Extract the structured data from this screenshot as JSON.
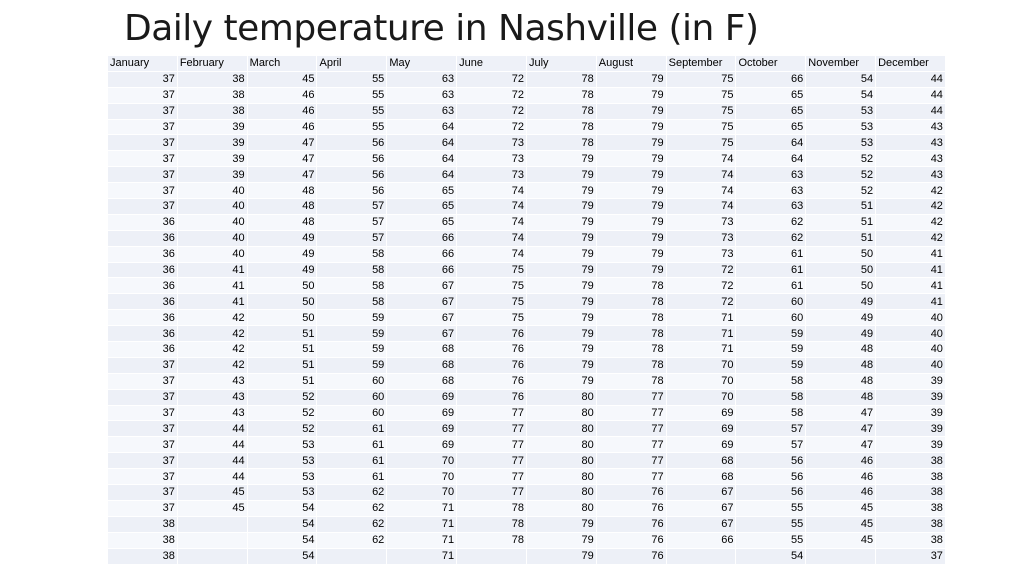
{
  "title": "Daily temperature in Nashville (in F)",
  "chart_data": {
    "type": "table",
    "title": "Daily temperature in Nashville (in F)",
    "columns": [
      "January",
      "February",
      "March",
      "April",
      "May",
      "June",
      "July",
      "August",
      "September",
      "October",
      "November",
      "December"
    ],
    "rows": [
      [
        "37",
        "38",
        "45",
        "55",
        "63",
        "72",
        "78",
        "79",
        "75",
        "66",
        "54",
        "44"
      ],
      [
        "37",
        "38",
        "46",
        "55",
        "63",
        "72",
        "78",
        "79",
        "75",
        "65",
        "54",
        "44"
      ],
      [
        "37",
        "38",
        "46",
        "55",
        "63",
        "72",
        "78",
        "79",
        "75",
        "65",
        "53",
        "44"
      ],
      [
        "37",
        "39",
        "46",
        "55",
        "64",
        "72",
        "78",
        "79",
        "75",
        "65",
        "53",
        "43"
      ],
      [
        "37",
        "39",
        "47",
        "56",
        "64",
        "73",
        "78",
        "79",
        "75",
        "64",
        "53",
        "43"
      ],
      [
        "37",
        "39",
        "47",
        "56",
        "64",
        "73",
        "79",
        "79",
        "74",
        "64",
        "52",
        "43"
      ],
      [
        "37",
        "39",
        "47",
        "56",
        "64",
        "73",
        "79",
        "79",
        "74",
        "63",
        "52",
        "43"
      ],
      [
        "37",
        "40",
        "48",
        "56",
        "65",
        "74",
        "79",
        "79",
        "74",
        "63",
        "52",
        "42"
      ],
      [
        "37",
        "40",
        "48",
        "57",
        "65",
        "74",
        "79",
        "79",
        "74",
        "63",
        "51",
        "42"
      ],
      [
        "36",
        "40",
        "48",
        "57",
        "65",
        "74",
        "79",
        "79",
        "73",
        "62",
        "51",
        "42"
      ],
      [
        "36",
        "40",
        "49",
        "57",
        "66",
        "74",
        "79",
        "79",
        "73",
        "62",
        "51",
        "42"
      ],
      [
        "36",
        "40",
        "49",
        "58",
        "66",
        "74",
        "79",
        "79",
        "73",
        "61",
        "50",
        "41"
      ],
      [
        "36",
        "41",
        "49",
        "58",
        "66",
        "75",
        "79",
        "79",
        "72",
        "61",
        "50",
        "41"
      ],
      [
        "36",
        "41",
        "50",
        "58",
        "67",
        "75",
        "79",
        "78",
        "72",
        "61",
        "50",
        "41"
      ],
      [
        "36",
        "41",
        "50",
        "58",
        "67",
        "75",
        "79",
        "78",
        "72",
        "60",
        "49",
        "41"
      ],
      [
        "36",
        "42",
        "50",
        "59",
        "67",
        "75",
        "79",
        "78",
        "71",
        "60",
        "49",
        "40"
      ],
      [
        "36",
        "42",
        "51",
        "59",
        "67",
        "76",
        "79",
        "78",
        "71",
        "59",
        "49",
        "40"
      ],
      [
        "36",
        "42",
        "51",
        "59",
        "68",
        "76",
        "79",
        "78",
        "71",
        "59",
        "48",
        "40"
      ],
      [
        "37",
        "42",
        "51",
        "59",
        "68",
        "76",
        "79",
        "78",
        "70",
        "59",
        "48",
        "40"
      ],
      [
        "37",
        "43",
        "51",
        "60",
        "68",
        "76",
        "79",
        "78",
        "70",
        "58",
        "48",
        "39"
      ],
      [
        "37",
        "43",
        "52",
        "60",
        "69",
        "76",
        "80",
        "77",
        "70",
        "58",
        "48",
        "39"
      ],
      [
        "37",
        "43",
        "52",
        "60",
        "69",
        "77",
        "80",
        "77",
        "69",
        "58",
        "47",
        "39"
      ],
      [
        "37",
        "44",
        "52",
        "61",
        "69",
        "77",
        "80",
        "77",
        "69",
        "57",
        "47",
        "39"
      ],
      [
        "37",
        "44",
        "53",
        "61",
        "69",
        "77",
        "80",
        "77",
        "69",
        "57",
        "47",
        "39"
      ],
      [
        "37",
        "44",
        "53",
        "61",
        "70",
        "77",
        "80",
        "77",
        "68",
        "56",
        "46",
        "38"
      ],
      [
        "37",
        "44",
        "53",
        "61",
        "70",
        "77",
        "80",
        "77",
        "68",
        "56",
        "46",
        "38"
      ],
      [
        "37",
        "45",
        "53",
        "62",
        "70",
        "77",
        "80",
        "76",
        "67",
        "56",
        "46",
        "38"
      ],
      [
        "37",
        "45",
        "54",
        "62",
        "71",
        "78",
        "80",
        "76",
        "67",
        "55",
        "45",
        "38"
      ],
      [
        "38",
        "",
        "54",
        "62",
        "71",
        "78",
        "79",
        "76",
        "67",
        "55",
        "45",
        "38"
      ],
      [
        "38",
        "",
        "54",
        "62",
        "71",
        "78",
        "79",
        "76",
        "66",
        "55",
        "45",
        "38"
      ],
      [
        "38",
        "",
        "54",
        "",
        "71",
        "",
        "79",
        "76",
        "",
        "54",
        "",
        "37"
      ]
    ]
  }
}
